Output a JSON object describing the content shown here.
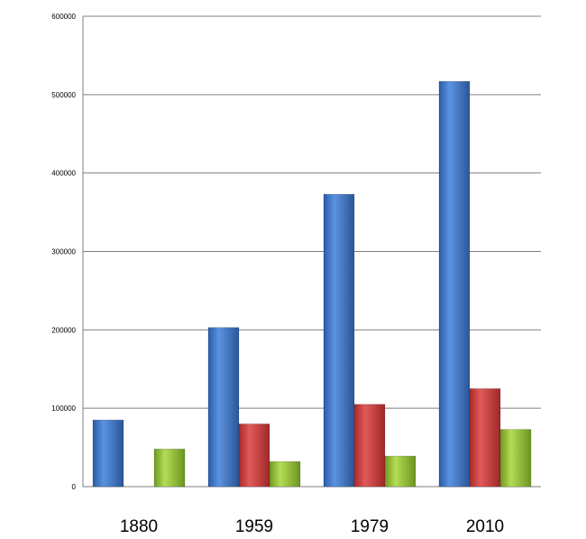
{
  "chart_data": {
    "type": "bar",
    "title": "",
    "xlabel": "",
    "ylabel": "",
    "categories": [
      "1880",
      "1959",
      "1979",
      "2010"
    ],
    "series": [
      {
        "values": [
          85000,
          203000,
          373000,
          517000
        ],
        "color": "#3d76c8"
      },
      {
        "values": [
          null,
          80000,
          105000,
          125000
        ],
        "color": "#cc3b3b"
      },
      {
        "values": [
          48000,
          32000,
          39000,
          73000
        ],
        "color": "#8fbc37"
      }
    ],
    "ylim": [
      0,
      600000
    ],
    "yticks": [
      "0",
      "100000",
      "200000",
      "300000",
      "400000",
      "500000",
      "600000"
    ],
    "grid": true,
    "legend": "none"
  }
}
